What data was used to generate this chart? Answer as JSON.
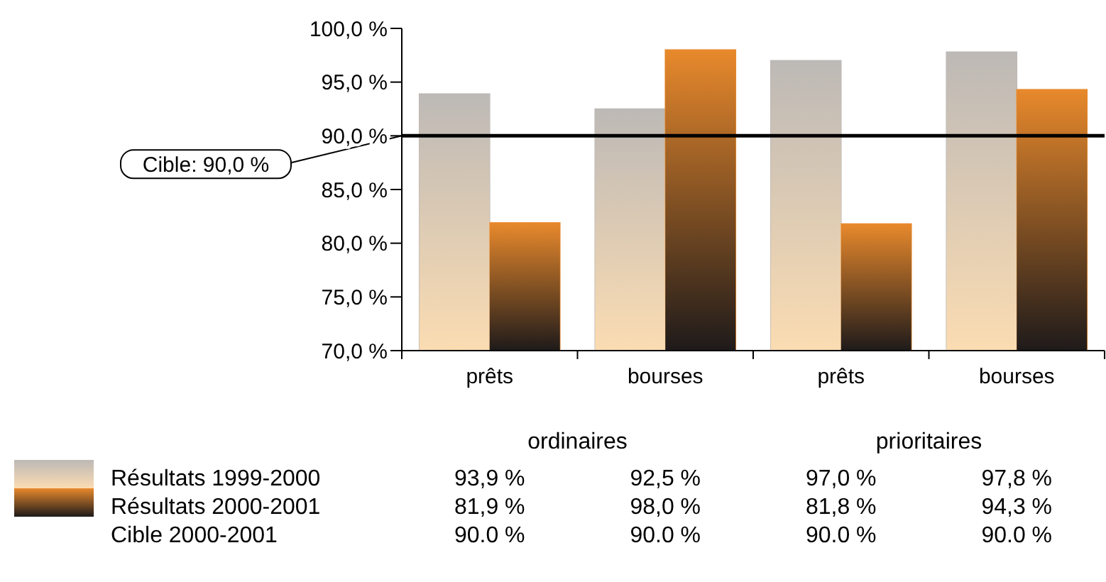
{
  "chart_data": {
    "type": "bar",
    "categories": [
      "prêts",
      "bourses",
      "prêts",
      "bourses"
    ],
    "series": [
      {
        "name": "Résultats 1999-2000",
        "color": "#bdb9b6",
        "values": [
          93.9,
          92.5,
          97.0,
          97.8
        ],
        "value_labels": [
          "93,9 %",
          "92,5 %",
          "97,0 %",
          "97,8 %"
        ]
      },
      {
        "name": "Résultats 2000-2001",
        "color": "#e8892c",
        "values": [
          81.9,
          98.0,
          81.8,
          94.3
        ],
        "value_labels": [
          "81,9 %",
          "98,0 %",
          "81,8 %",
          "94,3 %"
        ]
      }
    ],
    "ylim": [
      70,
      100
    ],
    "yticks": [
      {
        "value": 70,
        "label": "70,0 %"
      },
      {
        "value": 75,
        "label": "75,0 %"
      },
      {
        "value": 80,
        "label": "80,0 %"
      },
      {
        "value": 85,
        "label": "85,0 %"
      },
      {
        "value": 90,
        "label": "90,0 %"
      },
      {
        "value": 95,
        "label": "95,0 %"
      },
      {
        "value": 100,
        "label": "100,0 %"
      }
    ],
    "ref_lines": [
      {
        "axis": "y",
        "value": 90.0,
        "label": "Cible: 90,0 %",
        "color": "#000000"
      }
    ],
    "annotations": [
      "ordinaires",
      "prioritaires",
      "Cible 2000-2001",
      "90.0 %",
      "90.0 %",
      "90.0 %",
      "90.0 %"
    ],
    "legend": "bottom",
    "grid": false
  }
}
